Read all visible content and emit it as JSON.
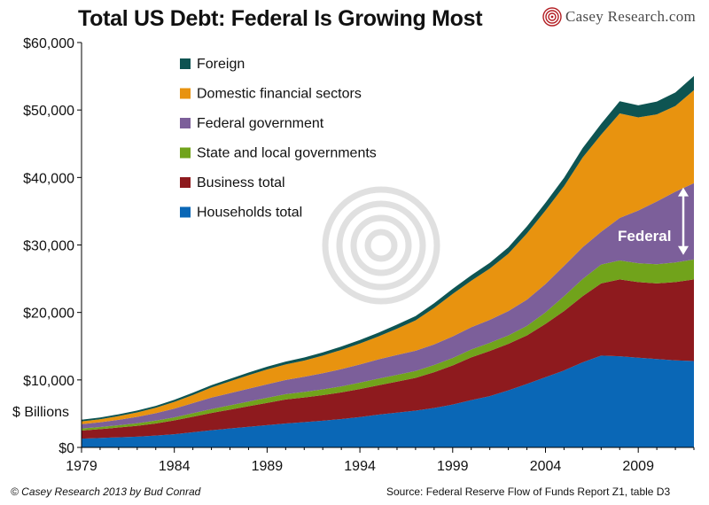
{
  "title": "Total US Debt: Federal Is Growing Most",
  "brand": {
    "name": "Casey Research.com",
    "logo_icon": "spiral-logo-icon"
  },
  "footer": {
    "credit": "© Casey Research 2013 by Bud Conrad",
    "source": "Source: Federal Reserve Flow of Funds Report Z1, table D3"
  },
  "chart_data": {
    "type": "area",
    "stacked": true,
    "title": "Total US Debt: Federal Is Growing Most",
    "ylabel": "$ Billions",
    "xlabel": "",
    "ylim": [
      0,
      60000
    ],
    "xlim": [
      1979,
      2012
    ],
    "x_ticks": [
      1979,
      1984,
      1989,
      1994,
      1999,
      2004,
      2009
    ],
    "y_ticks": [
      0,
      10000,
      20000,
      30000,
      40000,
      50000,
      60000
    ],
    "y_tick_labels": [
      "$0",
      "$10,000",
      "$20,000",
      "$30,000",
      "$40,000",
      "$50,000",
      "$60,000"
    ],
    "grid": false,
    "legend_position": "top-left",
    "x": [
      1979,
      1980,
      1981,
      1982,
      1983,
      1984,
      1985,
      1986,
      1987,
      1988,
      1989,
      1990,
      1991,
      1992,
      1993,
      1994,
      1995,
      1996,
      1997,
      1998,
      1999,
      2000,
      2001,
      2002,
      2003,
      2004,
      2005,
      2006,
      2007,
      2008,
      2009,
      2010,
      2011,
      2012
    ],
    "series": [
      {
        "name": "Households total",
        "color": "#0a67b6",
        "values": [
          1300,
          1400,
          1500,
          1600,
          1750,
          1950,
          2250,
          2550,
          2800,
          3050,
          3300,
          3550,
          3750,
          3950,
          4200,
          4500,
          4850,
          5150,
          5450,
          5850,
          6350,
          7000,
          7600,
          8450,
          9400,
          10400,
          11400,
          12600,
          13600,
          13500,
          13300,
          13100,
          12900,
          12800
        ]
      },
      {
        "name": "Business total",
        "color": "#8e1a1e",
        "values": [
          1200,
          1300,
          1450,
          1600,
          1800,
          2050,
          2300,
          2550,
          2800,
          3050,
          3300,
          3550,
          3650,
          3800,
          3950,
          4150,
          4350,
          4600,
          4850,
          5300,
          5800,
          6350,
          6700,
          6900,
          7200,
          7900,
          8800,
          9800,
          10700,
          11400,
          11200,
          11200,
          11600,
          12100
        ]
      },
      {
        "name": "State and local governments",
        "color": "#71a31b",
        "values": [
          300,
          320,
          340,
          380,
          420,
          450,
          520,
          580,
          640,
          700,
          760,
          790,
          820,
          850,
          900,
          950,
          990,
          1000,
          1020,
          1060,
          1100,
          1150,
          1200,
          1250,
          1400,
          1700,
          2200,
          2550,
          2800,
          2800,
          2800,
          2850,
          2900,
          2950
        ]
      },
      {
        "name": "Federal government",
        "color": "#7c5f9a",
        "values": [
          650,
          700,
          800,
          950,
          1100,
          1300,
          1500,
          1700,
          1800,
          1900,
          2000,
          2100,
          2250,
          2400,
          2550,
          2700,
          2850,
          2950,
          3000,
          3050,
          3200,
          3300,
          3400,
          3600,
          3900,
          4200,
          4500,
          4700,
          4850,
          6300,
          7800,
          9300,
          10500,
          11300
        ]
      },
      {
        "name": "Domestic financial sectors",
        "color": "#e8930f",
        "values": [
          400,
          450,
          550,
          650,
          800,
          1000,
          1200,
          1500,
          1750,
          2000,
          2200,
          2300,
          2400,
          2600,
          2850,
          3100,
          3400,
          3900,
          4500,
          5400,
          6300,
          6900,
          7600,
          8500,
          9800,
          10900,
          11800,
          13300,
          14400,
          15500,
          13800,
          12900,
          12700,
          13800
        ]
      },
      {
        "name": "Foreign",
        "color": "#0e5452",
        "values": [
          250,
          260,
          270,
          280,
          290,
          310,
          330,
          350,
          370,
          390,
          410,
          430,
          450,
          480,
          500,
          520,
          560,
          600,
          650,
          700,
          750,
          800,
          850,
          950,
          1050,
          1150,
          1250,
          1400,
          1600,
          1800,
          1800,
          1900,
          2000,
          2100
        ]
      }
    ],
    "annotations": [
      {
        "text": "Federal",
        "type": "double-arrow",
        "span": [
          28000,
          39300
        ],
        "x": 2011
      }
    ],
    "axis_note": "$ Billions"
  }
}
